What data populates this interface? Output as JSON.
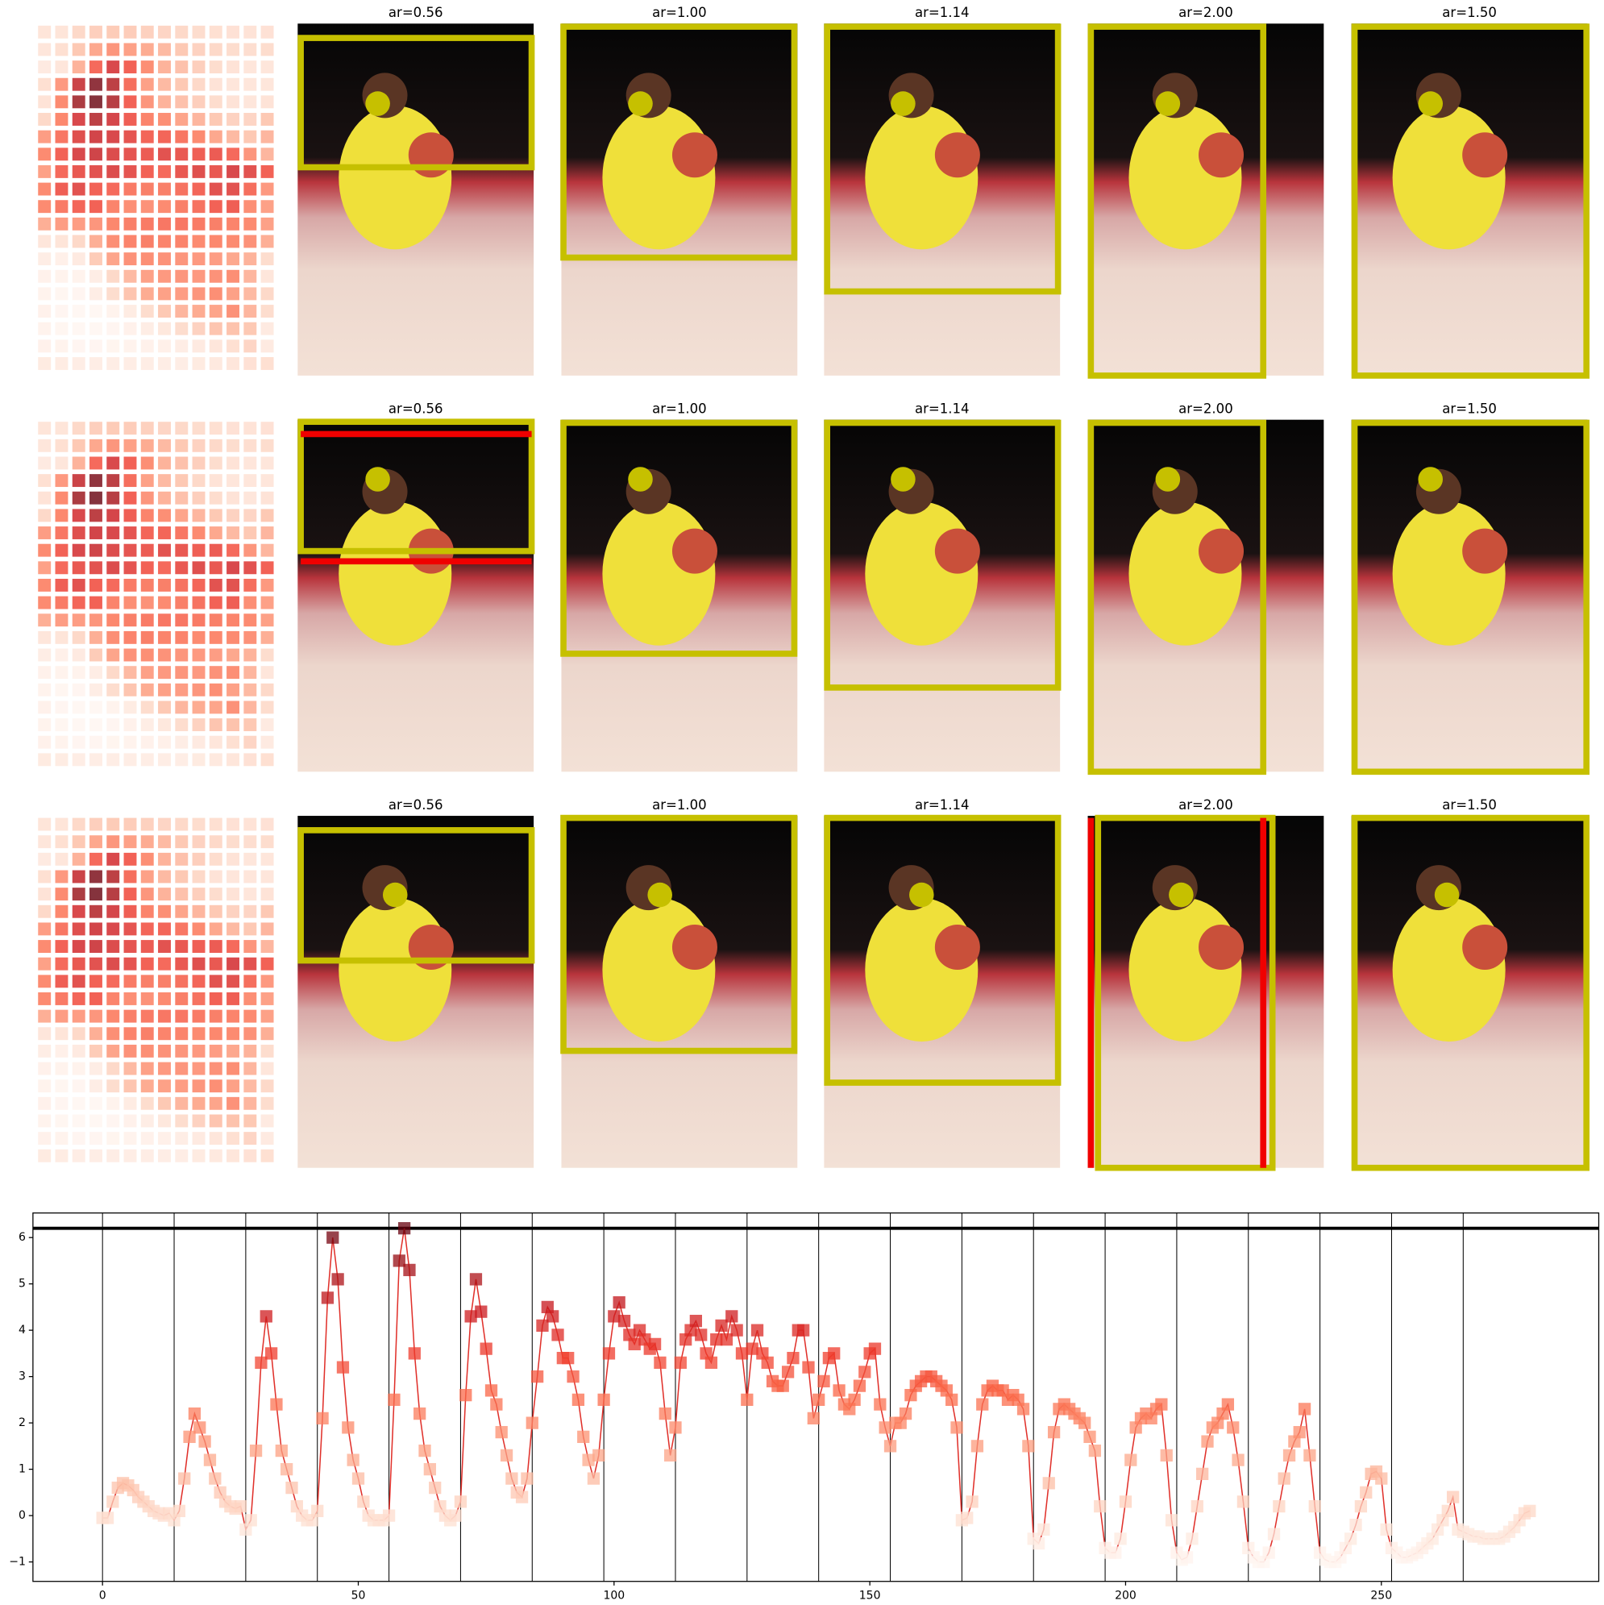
{
  "rows": [
    {
      "titles": [
        "ar=0.56",
        "ar=1.00",
        "ar=1.14",
        "ar=2.00",
        "ar=1.50"
      ]
    },
    {
      "titles": [
        "ar=0.56",
        "ar=1.00",
        "ar=1.14",
        "ar=2.00",
        "ar=1.50"
      ]
    },
    {
      "titles": [
        "ar=0.56",
        "ar=1.00",
        "ar=1.14",
        "ar=2.00",
        "ar=1.50"
      ]
    }
  ],
  "chart_data": {
    "type": "line",
    "values": [
      -0.05,
      -0.05,
      0.3,
      0.6,
      0.7,
      0.65,
      0.55,
      0.4,
      0.3,
      0.2,
      0.1,
      0.05,
      0.0,
      0.05,
      -0.1,
      0.1,
      0.8,
      1.7,
      2.2,
      1.9,
      1.6,
      1.2,
      0.8,
      0.5,
      0.3,
      0.2,
      0.15,
      0.2,
      -0.3,
      -0.1,
      1.4,
      3.3,
      4.3,
      3.5,
      2.4,
      1.4,
      1.0,
      0.6,
      0.2,
      0.0,
      -0.1,
      -0.1,
      0.1,
      2.1,
      4.7,
      6.0,
      5.1,
      3.2,
      1.9,
      1.2,
      0.8,
      0.3,
      0.0,
      -0.1,
      -0.1,
      -0.1,
      0.0,
      2.5,
      5.5,
      6.2,
      5.3,
      3.5,
      2.2,
      1.4,
      1.0,
      0.6,
      0.2,
      0.0,
      -0.1,
      0.0,
      0.3,
      2.6,
      4.3,
      5.1,
      4.4,
      3.6,
      2.7,
      2.4,
      1.8,
      1.3,
      0.8,
      0.5,
      0.4,
      0.8,
      2.0,
      3.0,
      4.1,
      4.5,
      4.3,
      3.9,
      3.4,
      3.4,
      3.0,
      2.5,
      1.7,
      1.2,
      0.8,
      1.3,
      2.5,
      3.5,
      4.3,
      4.6,
      4.2,
      3.9,
      3.7,
      4.0,
      3.8,
      3.6,
      3.7,
      3.3,
      2.2,
      1.3,
      1.9,
      3.3,
      3.8,
      4.0,
      4.2,
      3.9,
      3.5,
      3.3,
      3.8,
      4.1,
      3.8,
      4.3,
      4.0,
      3.5,
      2.5,
      3.6,
      4.0,
      3.5,
      3.3,
      2.9,
      2.8,
      2.8,
      3.1,
      3.4,
      4.0,
      4.0,
      3.2,
      2.1,
      2.5,
      2.9,
      3.4,
      3.5,
      2.7,
      2.4,
      2.3,
      2.5,
      2.8,
      3.1,
      3.5,
      3.6,
      2.4,
      1.9,
      1.5,
      2.0,
      2.0,
      2.2,
      2.6,
      2.8,
      2.9,
      3.0,
      3.0,
      2.9,
      2.8,
      2.7,
      2.5,
      1.9,
      -0.1,
      -0.05,
      0.3,
      1.5,
      2.4,
      2.7,
      2.8,
      2.7,
      2.7,
      2.5,
      2.6,
      2.5,
      2.3,
      1.5,
      -0.5,
      -0.6,
      -0.3,
      0.7,
      1.8,
      2.3,
      2.4,
      2.3,
      2.2,
      2.1,
      2.0,
      1.7,
      1.4,
      0.2,
      -0.7,
      -0.8,
      -0.8,
      -0.5,
      0.3,
      1.2,
      1.9,
      2.1,
      2.2,
      2.1,
      2.3,
      2.4,
      1.3,
      -0.1,
      -0.8,
      -0.95,
      -0.9,
      -0.5,
      0.2,
      0.9,
      1.6,
      1.9,
      2.0,
      2.2,
      2.4,
      1.9,
      1.2,
      0.3,
      -0.7,
      -0.9,
      -1.0,
      -1.0,
      -0.8,
      -0.4,
      0.2,
      0.8,
      1.3,
      1.6,
      1.8,
      2.3,
      1.3,
      0.2,
      -0.8,
      -0.95,
      -1.0,
      -1.0,
      -0.9,
      -0.7,
      -0.5,
      -0.2,
      0.2,
      0.5,
      0.9,
      0.95,
      0.8,
      -0.3,
      -0.7,
      -0.8,
      -0.9,
      -0.9,
      -0.85,
      -0.8,
      -0.7,
      -0.6,
      -0.5,
      -0.3,
      -0.1,
      0.1,
      0.4,
      -0.3,
      -0.35,
      -0.4,
      -0.45,
      -0.45,
      -0.5,
      -0.5,
      -0.5,
      -0.5,
      -0.45,
      -0.35,
      -0.25,
      -0.1,
      0.05,
      0.1
    ],
    "color": "#e0302a",
    "colormap": [
      "#fff5f0",
      "#fee0d2",
      "#fcbba1",
      "#fc9272",
      "#fb6a4a",
      "#ef3b2c",
      "#cb181d",
      "#a50f15",
      "#67000d"
    ],
    "heatmap_columns": 14,
    "xlim": [
      -13.6,
      292.5
    ],
    "ylim": [
      -1.42,
      6.53
    ],
    "xticks": [
      0,
      50,
      100,
      150,
      200,
      250
    ],
    "yticks": [
      {
        "value": -1,
        "label": "−1"
      },
      0,
      1,
      2,
      3,
      4,
      5,
      6
    ],
    "vlines": [
      0,
      14,
      28,
      42,
      56,
      70,
      84,
      98,
      112,
      126,
      140,
      154,
      168,
      182,
      196,
      210,
      224,
      238,
      252,
      266
    ],
    "hline": 6.2
  }
}
